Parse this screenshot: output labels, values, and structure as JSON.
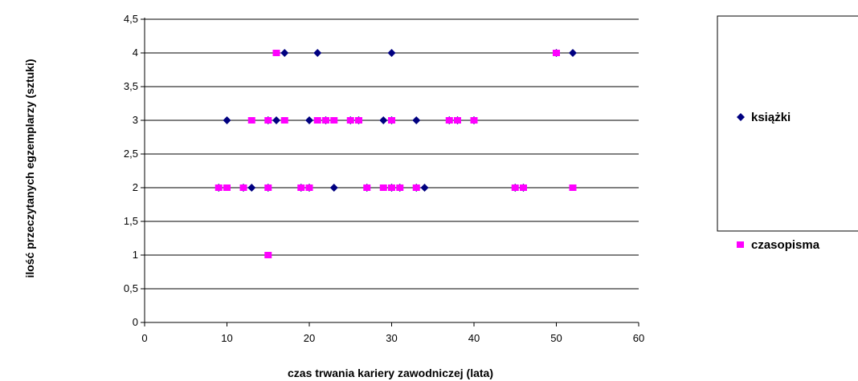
{
  "chart_data": {
    "type": "scatter",
    "xlabel": "czas trwania kariery zawodniczej (lata)",
    "ylabel": "ilość przeczytanych egzemplarzy (sztuki)",
    "xlim": [
      0,
      60
    ],
    "ylim": [
      0,
      4.5
    ],
    "x_ticks": [
      "0",
      "10",
      "20",
      "30",
      "40",
      "50",
      "60"
    ],
    "y_ticks": [
      "0",
      "0,5",
      "1",
      "1,5",
      "2",
      "2,5",
      "3",
      "3,5",
      "4",
      "4,5"
    ],
    "grid": "horizontal",
    "legend_position": "right",
    "series": [
      {
        "name": "książki",
        "color": "#000080",
        "marker": "diamond",
        "points": [
          [
            17,
            4
          ],
          [
            21,
            4
          ],
          [
            30,
            4
          ],
          [
            50,
            4
          ],
          [
            52,
            4
          ],
          [
            10,
            3
          ],
          [
            15,
            3
          ],
          [
            16,
            3
          ],
          [
            20,
            3
          ],
          [
            22,
            3
          ],
          [
            25,
            3
          ],
          [
            26,
            3
          ],
          [
            29,
            3
          ],
          [
            30,
            3
          ],
          [
            33,
            3
          ],
          [
            37,
            3
          ],
          [
            38,
            3
          ],
          [
            40,
            3
          ],
          [
            9,
            2
          ],
          [
            12,
            2
          ],
          [
            13,
            2
          ],
          [
            15,
            2
          ],
          [
            19,
            2
          ],
          [
            20,
            2
          ],
          [
            23,
            2
          ],
          [
            27,
            2
          ],
          [
            30,
            2
          ],
          [
            31,
            2
          ],
          [
            33,
            2
          ],
          [
            34,
            2
          ],
          [
            45,
            2
          ],
          [
            46,
            2
          ]
        ]
      },
      {
        "name": "czasopisma",
        "color": "#ff00ff",
        "marker": "square",
        "points": [
          [
            16,
            4
          ],
          [
            50,
            4
          ],
          [
            13,
            3
          ],
          [
            15,
            3
          ],
          [
            17,
            3
          ],
          [
            21,
            3
          ],
          [
            22,
            3
          ],
          [
            23,
            3
          ],
          [
            25,
            3
          ],
          [
            26,
            3
          ],
          [
            30,
            3
          ],
          [
            37,
            3
          ],
          [
            38,
            3
          ],
          [
            40,
            3
          ],
          [
            9,
            2
          ],
          [
            10,
            2
          ],
          [
            12,
            2
          ],
          [
            15,
            2
          ],
          [
            19,
            2
          ],
          [
            20,
            2
          ],
          [
            27,
            2
          ],
          [
            29,
            2
          ],
          [
            30,
            2
          ],
          [
            31,
            2
          ],
          [
            33,
            2
          ],
          [
            45,
            2
          ],
          [
            46,
            2
          ],
          [
            52,
            2
          ],
          [
            15,
            1
          ]
        ]
      }
    ]
  }
}
